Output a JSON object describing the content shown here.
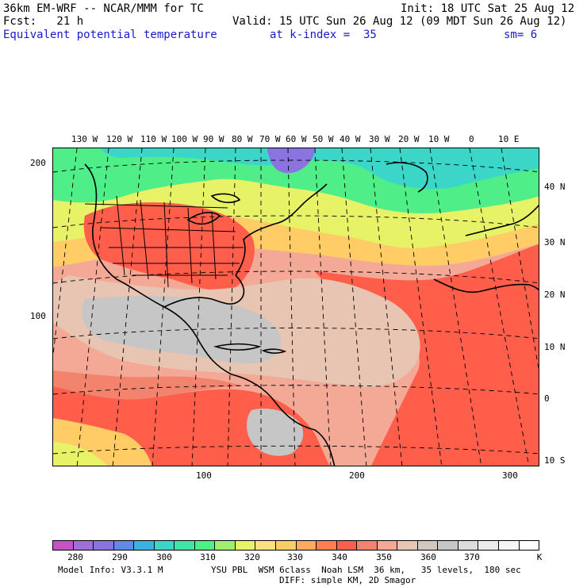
{
  "header": {
    "title": "36km EM-WRF -- NCAR/MMM for TC",
    "init": "Init: 18 UTC Sat 25 Aug 12",
    "fcst": "Fcst:   21 h",
    "valid": "Valid: 15 UTC Sun 26 Aug 12 (09 MDT Sun 26 Aug 12)",
    "field": "Equivalent potential temperature",
    "k_index": "at k-index =  35",
    "smoothing": "sm= 6"
  },
  "map": {
    "longitude_labels": [
      "130 W",
      "120 W",
      "110 W",
      "100 W",
      "90 W",
      "80 W",
      "70 W",
      "60 W",
      "50 W",
      "40 W",
      "30 W",
      "20 W",
      "10 W",
      "0",
      "10 E"
    ],
    "latitude_labels": [
      "40 N",
      "30 N",
      "20 N",
      "10 N",
      "0",
      "10 S"
    ],
    "y_grid_labels": [
      "200",
      "100"
    ],
    "x_grid_labels": [
      "100",
      "200",
      "300"
    ],
    "colors": {
      "c290": "#8a74e0",
      "c300": "#3bd6c8",
      "c310": "#50ee88",
      "c320": "#e8f266",
      "c330": "#ffcc66",
      "c340": "#ff5e4a",
      "c345": "#f2846e",
      "c350": "#f4a896",
      "c355": "#e8c4b2",
      "c360": "#c6c6c6",
      "coast": "#000000",
      "grid": "#000000"
    }
  },
  "colorbar": {
    "colors": [
      "#c652c8",
      "#a070d8",
      "#8a74e0",
      "#5f8ae8",
      "#3bb2e0",
      "#3bd6c8",
      "#3fe6a8",
      "#50ee88",
      "#9cf070",
      "#e8f266",
      "#ffe080",
      "#ffcc66",
      "#ffaa60",
      "#ff7f50",
      "#ff5e4a",
      "#f2846e",
      "#f4a896",
      "#e8c4b2",
      "#d2c8c2",
      "#c6c6c6",
      "#dcdcdc",
      "#ececec",
      "#f6f6f6",
      "#ffffff"
    ],
    "ticks": [
      "280",
      "290",
      "300",
      "310",
      "320",
      "330",
      "340",
      "350",
      "360",
      "370"
    ],
    "unit": "K"
  },
  "footer": {
    "model_info": "Model Info: V3.3.1 M",
    "physics": "YSU PBL  WSM 6class  Noah LSM  36 km,   35 levels,  180 sec",
    "diffusion": "DIFF: simple KM, 2D Smagor"
  }
}
